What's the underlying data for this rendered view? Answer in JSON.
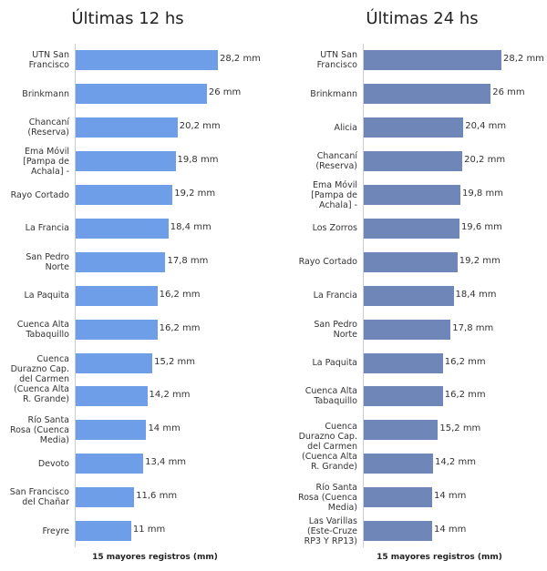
{
  "chart_data": [
    {
      "type": "bar",
      "orientation": "horizontal",
      "title": "Últimas 12 hs",
      "xlabel": "15 mayores registros (mm)",
      "color": "#6f9ee8",
      "categories": [
        "UTN San Francisco",
        "Brinkmann",
        "Chancaní (Reserva)",
        "Ema Móvil [Pampa de Achala] -",
        "Rayo Cortado",
        "La Francia",
        "San Pedro Norte",
        "La Paquita",
        "Cuenca Alta Tabaquillo",
        "Cuenca Durazno Cap. del Carmen (Cuenca Alta R. Grande)",
        null,
        "Río Santa Rosa (Cuenca Media)",
        "Devoto",
        "San Francisco del Chañar",
        "Freyre"
      ],
      "values": [
        28.2,
        26,
        20.2,
        19.8,
        19.2,
        18.4,
        17.8,
        16.2,
        16.2,
        15.2,
        14.2,
        14,
        13.4,
        11.6,
        11
      ],
      "value_labels": [
        "28,2 mm",
        "26 mm",
        "20,2 mm",
        "19,8 mm",
        "19,2 mm",
        "18,4 mm",
        "17,8 mm",
        "16,2 mm",
        "16,2 mm",
        "15,2 mm",
        "14,2 mm",
        "14 mm",
        "13,4 mm",
        "11,6 mm",
        "11 mm"
      ]
    },
    {
      "type": "bar",
      "orientation": "horizontal",
      "title": "Últimas 24 hs",
      "xlabel": "15 mayores registros (mm)",
      "color": "#6f86b8",
      "categories": [
        "UTN San Francisco",
        "Brinkmann",
        "Alicia",
        "Chancaní (Reserva)",
        "Ema Móvil [Pampa de Achala] -",
        "Los Zorros",
        "Rayo Cortado",
        "La Francia",
        "San Pedro Norte",
        "La Paquita",
        "Cuenca Alta Tabaquillo",
        "Cuenca Durazno Cap. del Carmen (Cuenca Alta R. Grande)",
        null,
        "Río Santa Rosa (Cuenca Media)",
        "Las Varillas (Este-Cruze RP3 Y RP13)"
      ],
      "values": [
        28.2,
        26,
        20.4,
        20.2,
        19.8,
        19.6,
        19.2,
        18.4,
        17.8,
        16.2,
        16.2,
        15.2,
        14.2,
        14,
        14
      ],
      "value_labels": [
        "28,2 mm",
        "26 mm",
        "20,4 mm",
        "20,2 mm",
        "19,8 mm",
        "19,6 mm",
        "19,2 mm",
        "18,4 mm",
        "17,8 mm",
        "16,2 mm",
        "16,2 mm",
        "15,2 mm",
        "14,2 mm",
        "14 mm",
        "14 mm"
      ]
    }
  ]
}
